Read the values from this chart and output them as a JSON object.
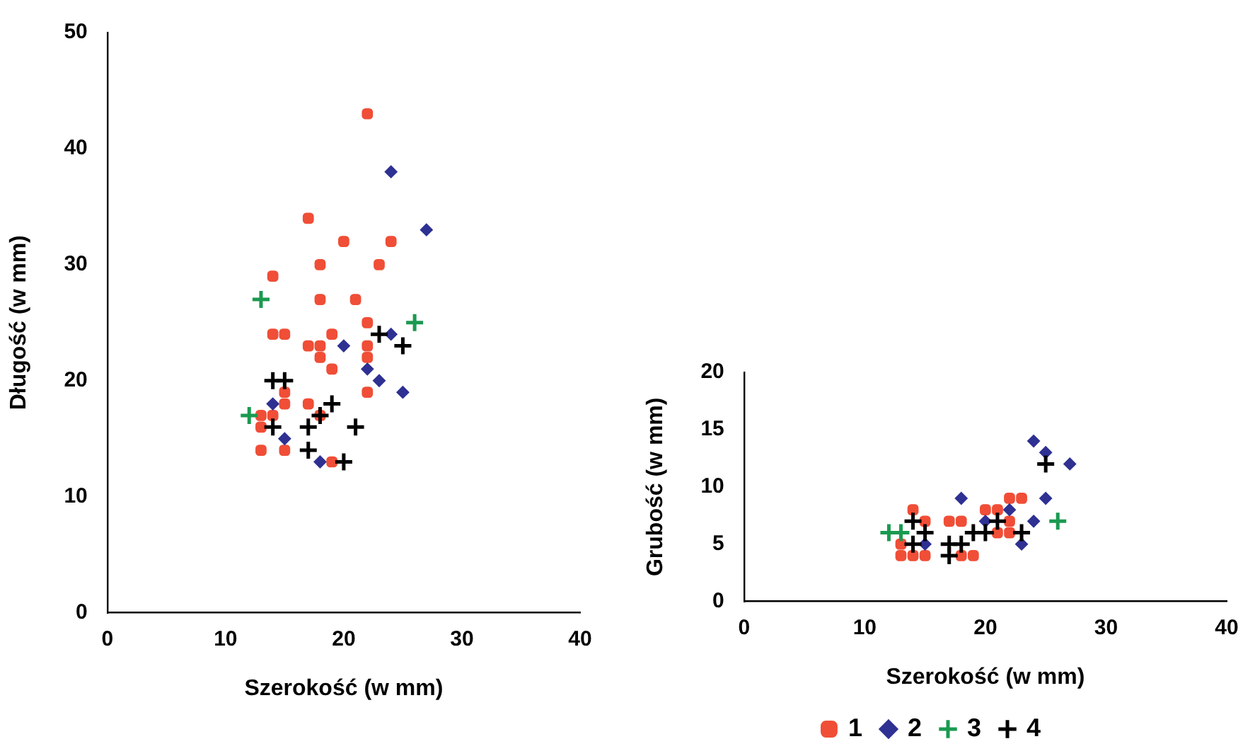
{
  "chart_data": [
    {
      "type": "scatter",
      "xlabel": "Szerokość (w mm)",
      "ylabel": "Długość (w mm)",
      "xlim": [
        0,
        40
      ],
      "xticks": [
        0,
        10,
        20,
        30,
        40
      ],
      "ylim": [
        0,
        50
      ],
      "yticks": [
        0,
        10,
        20,
        30,
        40,
        50
      ],
      "grid": false,
      "legend": false,
      "series": [
        {
          "color": "#f04e37",
          "marker": "circle",
          "x": [
            22,
            17,
            20,
            24,
            18,
            23,
            14,
            18,
            21,
            14,
            15,
            19,
            17,
            18,
            22,
            18,
            22,
            19,
            22,
            15,
            15,
            17,
            13,
            14,
            18,
            13,
            13,
            15,
            19,
            22
          ],
          "values": [
            43,
            34,
            32,
            32,
            30,
            30,
            29,
            27,
            27,
            24,
            24,
            24,
            23,
            23,
            23,
            22,
            22,
            21,
            19,
            19,
            18,
            18,
            17,
            17,
            17,
            16,
            14,
            14,
            13,
            25
          ]
        },
        {
          "color": "#2e3192",
          "marker": "diamond",
          "x": [
            24,
            27,
            24,
            20,
            22,
            23,
            25,
            14,
            15,
            18
          ],
          "values": [
            38,
            33,
            24,
            23,
            21,
            20,
            19,
            18,
            15,
            13
          ]
        },
        {
          "color": "#1a9a50",
          "marker": "cross",
          "x": [
            13,
            26,
            12
          ],
          "values": [
            27,
            25,
            17
          ]
        },
        {
          "color": "#000000",
          "marker": "cross",
          "x": [
            23,
            25,
            14,
            15,
            19,
            18,
            14,
            17,
            21,
            17,
            20
          ],
          "values": [
            24,
            23,
            20,
            20,
            18,
            17,
            16,
            16,
            16,
            14,
            13
          ]
        }
      ]
    },
    {
      "type": "scatter",
      "xlabel": "Szerokość (w mm)",
      "ylabel": "Grubość (w mm)",
      "xlim": [
        0,
        40
      ],
      "xticks": [
        0,
        10,
        20,
        30,
        40
      ],
      "ylim": [
        0,
        20
      ],
      "yticks": [
        0,
        5,
        10,
        15,
        20
      ],
      "grid": false,
      "legend": "bottom",
      "series": [
        {
          "name": "1",
          "color": "#f04e37",
          "marker": "circle",
          "x": [
            14,
            15,
            17,
            18,
            20,
            21,
            22,
            23,
            22,
            21,
            22,
            13,
            14,
            15,
            18,
            19,
            13
          ],
          "values": [
            8,
            7,
            7,
            7,
            8,
            8,
            9,
            9,
            7,
            6,
            6,
            4,
            4,
            4,
            4,
            4,
            5
          ]
        },
        {
          "name": "2",
          "color": "#2e3192",
          "marker": "diamond",
          "x": [
            24,
            25,
            27,
            18,
            25,
            22,
            20,
            24,
            15,
            23
          ],
          "values": [
            14,
            13,
            12,
            9,
            9,
            8,
            7,
            7,
            5,
            5
          ]
        },
        {
          "name": "3",
          "color": "#1a9a50",
          "marker": "cross",
          "x": [
            12,
            13,
            26
          ],
          "values": [
            6,
            6,
            7
          ]
        },
        {
          "name": "4",
          "color": "#000000",
          "marker": "cross",
          "x": [
            25,
            14,
            21,
            15,
            19,
            20,
            23,
            14,
            17,
            18,
            17
          ],
          "values": [
            12,
            7,
            7,
            6,
            6,
            6,
            6,
            5,
            5,
            5,
            4
          ]
        }
      ]
    }
  ]
}
